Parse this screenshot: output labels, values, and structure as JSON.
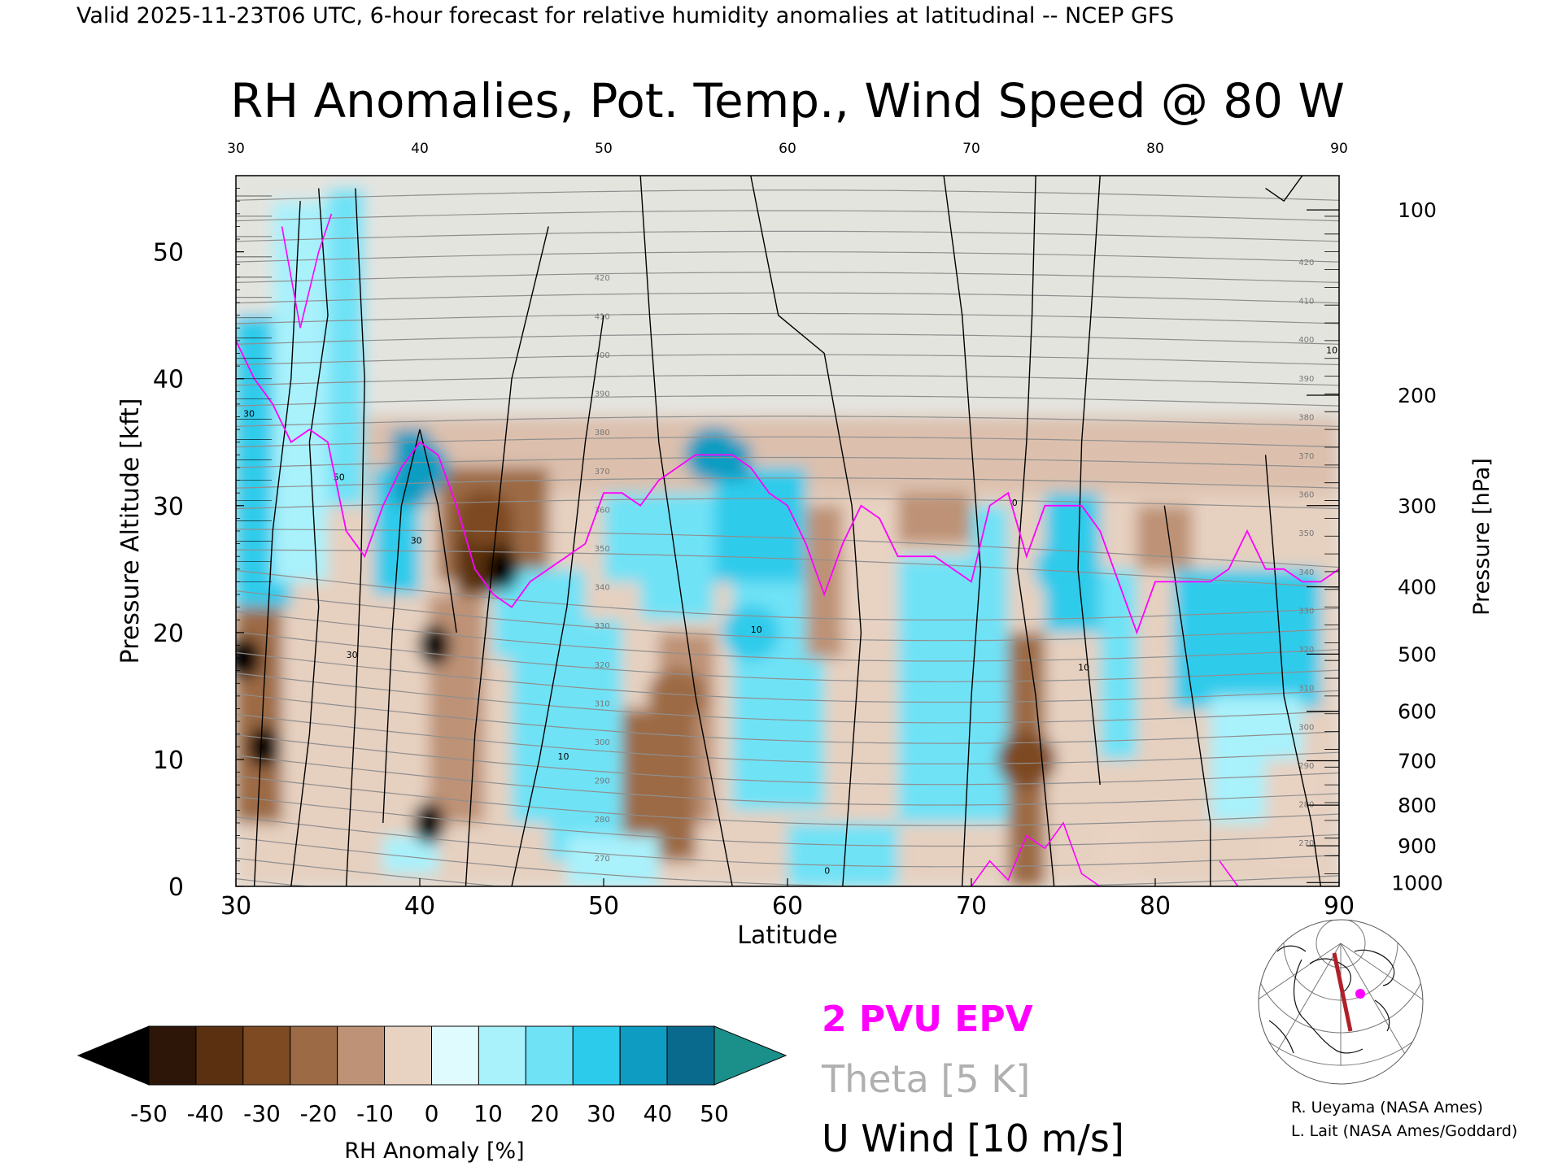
{
  "header": {
    "valid_line": "Valid 2025-11-23T06 UTC, 6-hour forecast for relative humidity anomalies at latitudinal -- NCEP GFS"
  },
  "chart_data": {
    "type": "heatmap",
    "title": "RH Anomalies, Pot. Temp., Wind Speed @ 80 W",
    "xlabel": "Latitude",
    "ylabel": "Pressure Altitude [kft]",
    "y2label": "Pressure [hPa]",
    "xlim": [
      30,
      90
    ],
    "ylim": [
      0,
      56
    ],
    "x_ticks": [
      "30",
      "40",
      "50",
      "60",
      "70",
      "80",
      "90"
    ],
    "x_tick_values": [
      30,
      40,
      50,
      60,
      70,
      80,
      90
    ],
    "top_x_ticks": [
      "30",
      "40",
      "50",
      "60",
      "70",
      "80",
      "90"
    ],
    "y_ticks": [
      "0",
      "10",
      "20",
      "30",
      "40",
      "50"
    ],
    "y_tick_values": [
      0,
      10,
      20,
      30,
      40,
      50
    ],
    "pressure_ticks": [
      {
        "label": "100",
        "alt": 53.3
      },
      {
        "label": "200",
        "alt": 38.7
      },
      {
        "label": "300",
        "alt": 30.0
      },
      {
        "label": "400",
        "alt": 23.6
      },
      {
        "label": "500",
        "alt": 18.3
      },
      {
        "label": "600",
        "alt": 13.8
      },
      {
        "label": "700",
        "alt": 9.9
      },
      {
        "label": "800",
        "alt": 6.4
      },
      {
        "label": "900",
        "alt": 3.2
      },
      {
        "label": "1000",
        "alt": 0.3
      }
    ],
    "colorbar": {
      "label": "RH Anomaly [%]",
      "ticks": [
        "-50",
        "-40",
        "-30",
        "-20",
        "-10",
        "0",
        "10",
        "20",
        "30",
        "40",
        "50"
      ],
      "colors": [
        "#2d1608",
        "#5a3011",
        "#7d4a22",
        "#9c6a45",
        "#bd9276",
        "#e8d2c2",
        "#dffbfd",
        "#a9f1fb",
        "#6fe2f6",
        "#2dcbeb",
        "#0e9cc2",
        "#0a6a8e"
      ],
      "low_extend_color": "#000000",
      "high_extend_color": "#1b8f8a"
    },
    "legend": [
      {
        "label": "2 PVU EPV",
        "color": "#ff00ff"
      },
      {
        "label": "Theta [5 K]",
        "color": "#a0a0a0"
      },
      {
        "label": "U Wind [10 m/s]",
        "color": "#000000"
      }
    ],
    "theta_labels": [
      "270",
      "280",
      "290",
      "300",
      "310",
      "320",
      "330",
      "340",
      "350",
      "360",
      "370",
      "380",
      "390",
      "400",
      "410",
      "420"
    ],
    "wind_labels": [
      "0",
      "10",
      "30",
      "50"
    ],
    "pv2_tropopause": {
      "lat": [
        30,
        31,
        32,
        33,
        34,
        35,
        36,
        37,
        38,
        39,
        40,
        41,
        42,
        43,
        44,
        45,
        46,
        47,
        48,
        49,
        50,
        51,
        52,
        53,
        54,
        55,
        56,
        57,
        58,
        59,
        60,
        61,
        62,
        63,
        64,
        65,
        66,
        67,
        68,
        69,
        70,
        71,
        72,
        73,
        74,
        75,
        76,
        77,
        78,
        79,
        80,
        81,
        82,
        83,
        84,
        85,
        86,
        87,
        88,
        89,
        90
      ],
      "alt_kft": [
        43,
        40,
        38,
        35,
        36,
        35,
        28,
        26,
        30,
        33,
        35,
        34,
        30,
        25,
        23,
        22,
        24,
        25,
        26,
        27,
        31,
        31,
        30,
        32,
        33,
        34,
        34,
        34,
        33,
        31,
        30,
        27,
        23,
        27,
        30,
        29,
        26,
        26,
        26,
        25,
        24,
        30,
        31,
        26,
        30,
        30,
        30,
        28,
        24,
        20,
        24,
        24,
        24,
        24,
        25,
        28,
        25,
        25,
        24,
        24,
        25
      ]
    },
    "rh_anomaly_regions": [
      {
        "lat": 31.5,
        "alt_kft": 11,
        "value": -50
      },
      {
        "lat": 30.5,
        "alt_kft": 18,
        "value": -50
      },
      {
        "lat": 40.8,
        "alt_kft": 19,
        "value": -50
      },
      {
        "lat": 44.5,
        "alt_kft": 25,
        "value": -50
      },
      {
        "lat": 40.5,
        "alt_kft": 5,
        "value": -50
      },
      {
        "lat": 43.5,
        "alt_kft": 29,
        "value": -40
      },
      {
        "lat": 54,
        "alt_kft": 15,
        "value": -30
      },
      {
        "lat": 73,
        "alt_kft": 10,
        "value": -40
      },
      {
        "lat": 40,
        "alt_kft": 33,
        "value": 40
      },
      {
        "lat": 56,
        "alt_kft": 34,
        "value": 40
      },
      {
        "lat": 58,
        "alt_kft": 20,
        "value": 30
      },
      {
        "lat": 85,
        "alt_kft": 22,
        "value": 30
      },
      {
        "lat": 75,
        "alt_kft": 25,
        "value": 30
      }
    ]
  },
  "map_inset": {
    "credits": [
      "R. Ueyama (NASA Ames)",
      "L. Lait (NASA Ames/Goddard)"
    ]
  }
}
